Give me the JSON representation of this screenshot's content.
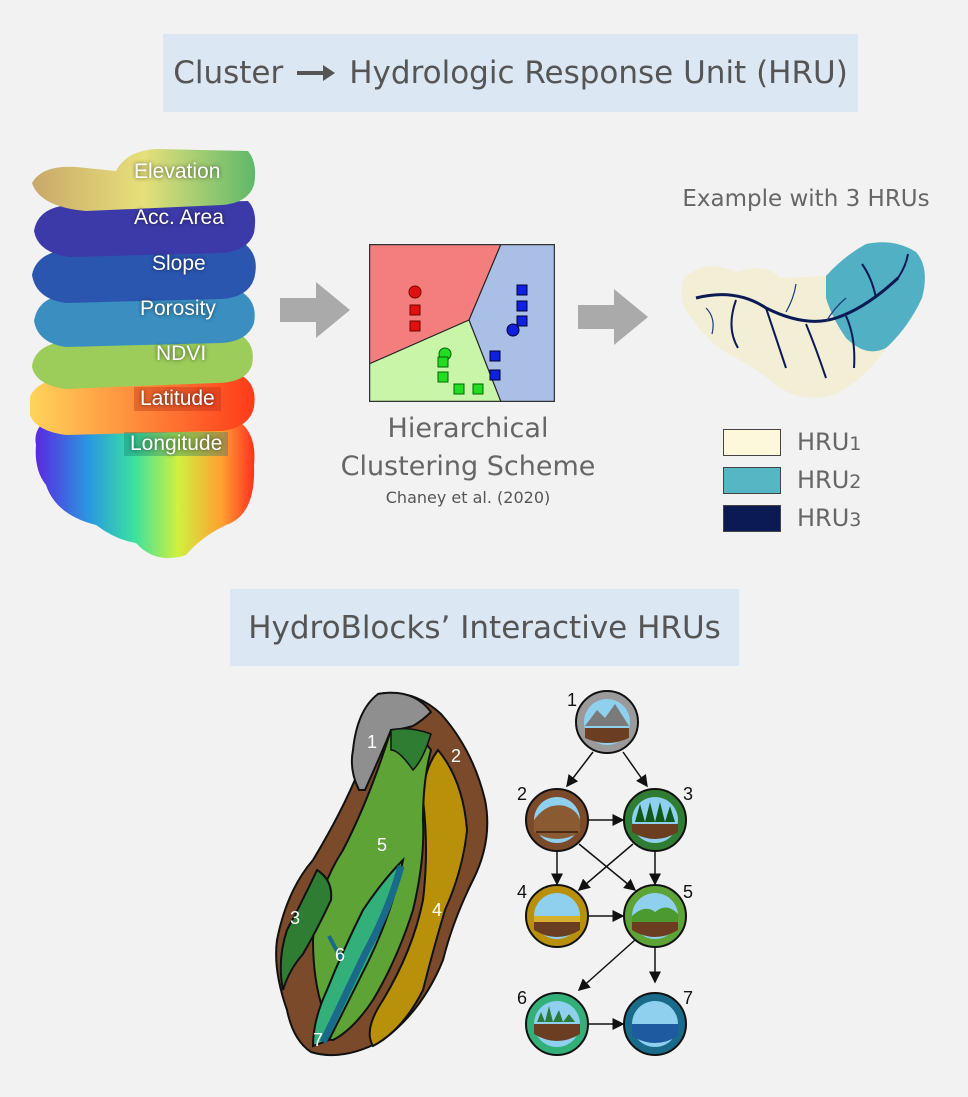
{
  "top_banner": {
    "left": "Cluster",
    "right": "Hydrologic Response Unit (HRU)"
  },
  "layers": [
    "Elevation",
    "Acc. Area",
    "Slope",
    "Porosity",
    "NDVI",
    "Latitude",
    "Longitude"
  ],
  "clustering": {
    "title_line1": "Hierarchical",
    "title_line2": "Clustering Scheme",
    "citation": "Chaney et al. (2020)"
  },
  "example": {
    "title": "Example with 3 HRUs",
    "legend": [
      {
        "label": "HRU",
        "sub": "1",
        "color": "#fdf8dc"
      },
      {
        "label": "HRU",
        "sub": "2",
        "color": "#55b6c4"
      },
      {
        "label": "HRU",
        "sub": "3",
        "color": "#0c1a54"
      }
    ]
  },
  "bottom_banner": "HydroBlocks’ Interactive HRUs",
  "hillslope_units": [
    "1",
    "2",
    "3",
    "4",
    "5",
    "6",
    "7"
  ],
  "graph_nodes": [
    "1",
    "2",
    "3",
    "4",
    "5",
    "6",
    "7"
  ],
  "colors": {
    "banner_bg": "#dbe7f3",
    "unit1": "#8a8a8a",
    "unit2": "#7a4a2a",
    "unit3": "#2e7d32",
    "unit4": "#b8900a",
    "unit5": "#5da336",
    "unit6": "#33b07a",
    "unit7": "#1a6a8a"
  }
}
